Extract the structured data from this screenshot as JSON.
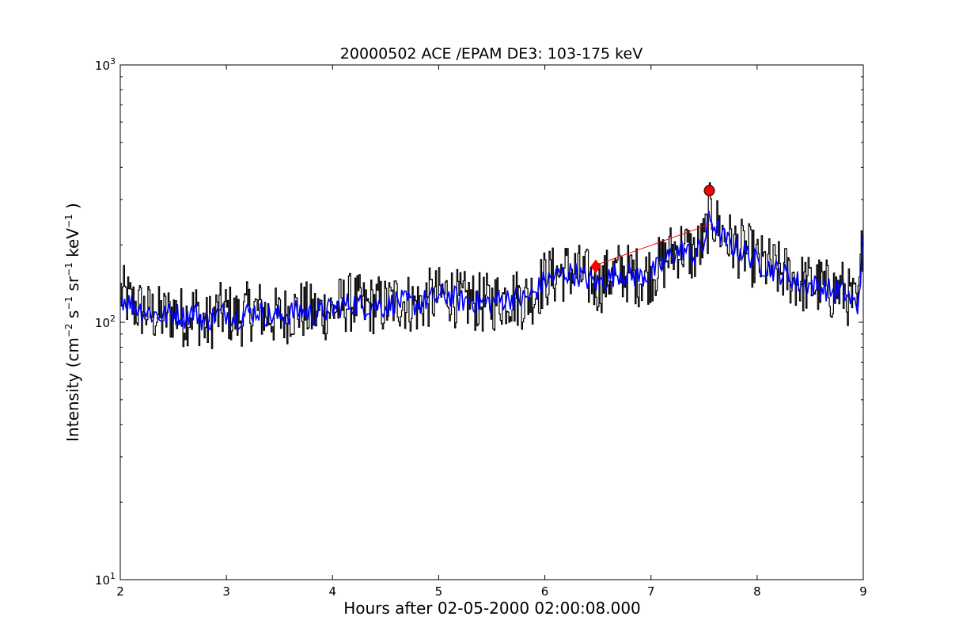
{
  "chart_data": {
    "type": "line",
    "title": "20000502 ACE /EPAM DE3: 103-175 keV",
    "xlabel": "Hours after 02-05-2000 02:00:08.000",
    "ylabel": {
      "prefix": "Intensity (cm",
      "exp1": "−2",
      "s": " s",
      "exp2": "−1",
      "sr": " sr",
      "exp3": "−1",
      "kev": " keV",
      "exp4": "−1",
      "suffix": " )"
    },
    "xlim": [
      2,
      9
    ],
    "ylim": [
      10,
      1000
    ],
    "yscale": "log",
    "grid": false,
    "x_ticks": [
      {
        "value": 2,
        "label": "2"
      },
      {
        "value": 3,
        "label": "3"
      },
      {
        "value": 4,
        "label": "4"
      },
      {
        "value": 5,
        "label": "5"
      },
      {
        "value": 6,
        "label": "6"
      },
      {
        "value": 7,
        "label": "7"
      },
      {
        "value": 8,
        "label": "8"
      },
      {
        "value": 9,
        "label": "9"
      }
    ],
    "y_ticks": [
      {
        "value": 10,
        "base": "10",
        "exp": "1"
      },
      {
        "value": 100,
        "base": "10",
        "exp": "2"
      },
      {
        "value": 1000,
        "base": "10",
        "exp": "3"
      }
    ],
    "series": [
      {
        "style": "raw-step",
        "color": "#000000",
        "x": [
          2.0,
          2.1,
          2.2,
          2.3,
          2.4,
          2.5,
          2.6,
          2.7,
          2.8,
          2.9,
          3.0,
          3.1,
          3.2,
          3.3,
          3.4,
          3.5,
          3.6,
          3.7,
          3.8,
          3.9,
          4.0,
          4.1,
          4.2,
          4.3,
          4.4,
          4.5,
          4.6,
          4.7,
          4.8,
          4.9,
          5.0,
          5.1,
          5.2,
          5.3,
          5.4,
          5.5,
          5.6,
          5.7,
          5.8,
          5.9,
          6.0,
          6.1,
          6.2,
          6.3,
          6.4,
          6.5,
          6.6,
          6.7,
          6.8,
          6.9,
          7.0,
          7.1,
          7.2,
          7.3,
          7.4,
          7.5,
          7.55,
          7.6,
          7.7,
          7.8,
          7.9,
          8.0,
          8.1,
          8.2,
          8.3,
          8.4,
          8.5,
          8.6,
          8.7,
          8.8,
          8.9,
          8.95,
          9.0
        ],
        "values": [
          130,
          118,
          112,
          108,
          105,
          110,
          104,
          112,
          96,
          108,
          110,
          103,
          110,
          112,
          106,
          104,
          110,
          112,
          108,
          110,
          112,
          118,
          120,
          114,
          118,
          115,
          122,
          120,
          116,
          124,
          126,
          130,
          120,
          122,
          118,
          120,
          124,
          126,
          122,
          130,
          148,
          152,
          158,
          156,
          148,
          140,
          150,
          158,
          154,
          150,
          156,
          168,
          190,
          196,
          182,
          205,
          265,
          245,
          212,
          196,
          188,
          170,
          165,
          158,
          152,
          142,
          140,
          138,
          132,
          134,
          118,
          112,
          230
        ]
      },
      {
        "style": "smoothed",
        "color": "#0000ff",
        "x": [
          2.0,
          2.1,
          2.2,
          2.3,
          2.4,
          2.5,
          2.6,
          2.7,
          2.8,
          2.9,
          3.0,
          3.1,
          3.2,
          3.3,
          3.4,
          3.5,
          3.6,
          3.7,
          3.8,
          3.9,
          4.0,
          4.1,
          4.2,
          4.3,
          4.4,
          4.5,
          4.6,
          4.7,
          4.8,
          4.9,
          5.0,
          5.1,
          5.2,
          5.3,
          5.4,
          5.5,
          5.6,
          5.7,
          5.8,
          5.9,
          6.0,
          6.1,
          6.2,
          6.3,
          6.4,
          6.5,
          6.6,
          6.7,
          6.8,
          6.9,
          7.0,
          7.1,
          7.2,
          7.3,
          7.4,
          7.5,
          7.55,
          7.6,
          7.7,
          7.8,
          7.9,
          8.0,
          8.1,
          8.2,
          8.3,
          8.4,
          8.5,
          8.6,
          8.7,
          8.8,
          8.9,
          8.95,
          9.0
        ],
        "values": [
          125,
          118,
          112,
          108,
          106,
          109,
          105,
          110,
          100,
          107,
          109,
          104,
          109,
          111,
          106,
          105,
          109,
          111,
          108,
          110,
          112,
          117,
          119,
          115,
          117,
          115,
          121,
          119,
          117,
          123,
          125,
          128,
          121,
          122,
          119,
          120,
          123,
          125,
          123,
          129,
          145,
          150,
          156,
          154,
          147,
          141,
          149,
          156,
          153,
          150,
          155,
          166,
          185,
          192,
          181,
          200,
          255,
          238,
          208,
          194,
          186,
          170,
          164,
          157,
          151,
          142,
          140,
          137,
          132,
          133,
          120,
          114,
          200
        ]
      },
      {
        "style": "fit",
        "color": "#ff0000",
        "x": [
          6.5,
          7.55
        ],
        "values": [
          168,
          240
        ]
      }
    ],
    "markers": [
      {
        "shape": "diamond",
        "x": 6.48,
        "y": 165,
        "color": "#ff0000"
      },
      {
        "shape": "circle",
        "x": 7.55,
        "y": 325,
        "color": "#ff0000"
      }
    ]
  }
}
